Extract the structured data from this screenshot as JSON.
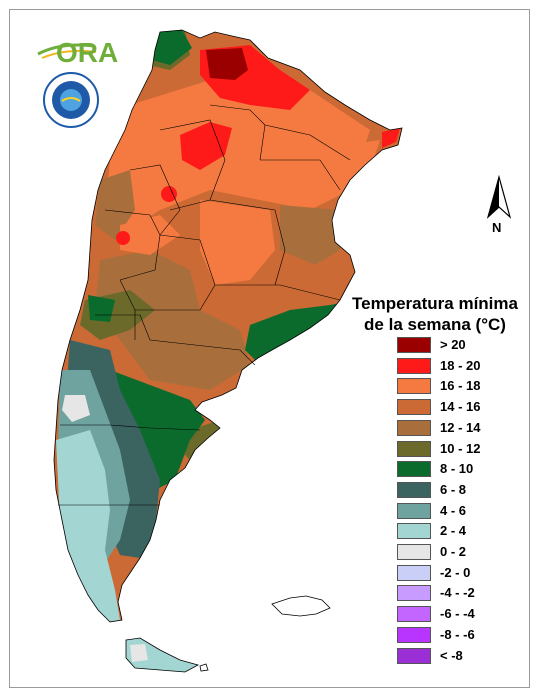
{
  "logo": {
    "text": "ORA"
  },
  "north_arrow": {
    "label": "N"
  },
  "legend": {
    "title_line1": "Temperatura mínima",
    "title_line2": "de la semana (°C)",
    "items": [
      {
        "label": "> 20",
        "color": "#9b0000"
      },
      {
        "label": "18 - 20",
        "color": "#ff1a1a"
      },
      {
        "label": "16 - 18",
        "color": "#f47a41"
      },
      {
        "label": "14 - 16",
        "color": "#cc6a35"
      },
      {
        "label": "12 - 14",
        "color": "#a86f3d"
      },
      {
        "label": "10 - 12",
        "color": "#6b6a2a"
      },
      {
        "label": "8 - 10",
        "color": "#0a6b2d"
      },
      {
        "label": "6 - 8",
        "color": "#3b6460"
      },
      {
        "label": "4 - 6",
        "color": "#6fa3a0"
      },
      {
        "label": "2 - 4",
        "color": "#a3d6d2"
      },
      {
        "label": "0 - 2",
        "color": "#e6e6e6"
      },
      {
        "label": "-2 - 0",
        "color": "#c9cff7"
      },
      {
        "label": "-4 - -2",
        "color": "#c79bff"
      },
      {
        "label": "-6 - -4",
        "color": "#c266ff"
      },
      {
        "label": "-8 - -6",
        "color": "#b835ff"
      },
      {
        "label": "< -8",
        "color": "#9b2fd6"
      }
    ]
  }
}
